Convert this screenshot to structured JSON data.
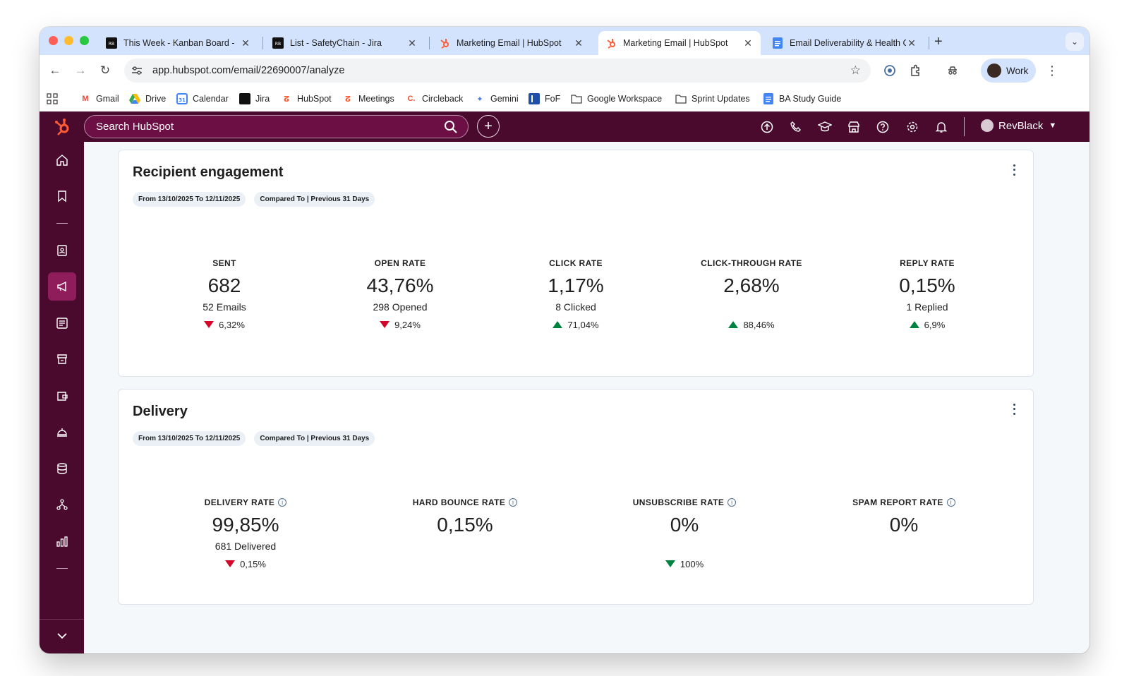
{
  "browser": {
    "tabs": [
      {
        "title": "This Week - Kanban Board - ",
        "active": false
      },
      {
        "title": "List - SafetyChain - Jira",
        "active": false
      },
      {
        "title": "Marketing Email | HubSpot",
        "active": false
      },
      {
        "title": "Marketing Email | HubSpot",
        "active": true
      },
      {
        "title": "Email Deliverability & Health C",
        "active": false
      }
    ],
    "new_tab": "+",
    "url": "app.hubspot.com/email/22690007/analyze",
    "profile_label": "Work",
    "bookmarks": [
      "Gmail",
      "Drive",
      "Calendar",
      "Jira",
      "HubSpot",
      "Meetings",
      "Circleback",
      "Gemini",
      "FoF",
      "Google Workspace",
      "Sprint Updates",
      "BA Study Guide"
    ]
  },
  "hubspot": {
    "search_placeholder": "Search HubSpot",
    "user_name": "RevBlack"
  },
  "engagement": {
    "title": "Recipient engagement",
    "date_range": "From 13/10/2025 To 12/11/2025",
    "compare": "Compared To | Previous 31 Days",
    "metrics": [
      {
        "label": "SENT",
        "value": "682",
        "sub": "52 Emails",
        "delta": "6,32%",
        "direction": "down"
      },
      {
        "label": "OPEN RATE",
        "value": "43,76%",
        "sub": "298 Opened",
        "delta": "9,24%",
        "direction": "down"
      },
      {
        "label": "CLICK RATE",
        "value": "1,17%",
        "sub": "8 Clicked",
        "delta": "71,04%",
        "direction": "up"
      },
      {
        "label": "CLICK-THROUGH RATE",
        "value": "2,68%",
        "sub": "",
        "delta": "88,46%",
        "direction": "up"
      },
      {
        "label": "REPLY RATE",
        "value": "0,15%",
        "sub": "1 Replied",
        "delta": "6,9%",
        "direction": "up"
      }
    ]
  },
  "delivery": {
    "title": "Delivery",
    "date_range": "From 13/10/2025 To 12/11/2025",
    "compare": "Compared To | Previous 31 Days",
    "metrics": [
      {
        "label": "DELIVERY RATE",
        "value": "99,85%",
        "sub": "681 Delivered",
        "delta": "0,15%",
        "direction": "down-red"
      },
      {
        "label": "HARD BOUNCE RATE",
        "value": "0,15%",
        "sub": "",
        "delta": "",
        "direction": ""
      },
      {
        "label": "UNSUBSCRIBE RATE",
        "value": "0%",
        "sub": "",
        "delta": "100%",
        "direction": "down-green"
      },
      {
        "label": "SPAM REPORT RATE",
        "value": "0%",
        "sub": "",
        "delta": "",
        "direction": ""
      }
    ]
  },
  "colors": {
    "hubspot_bar": "#4a0a2e",
    "accent_orange": "#ff5c35",
    "negative": "#d3072a",
    "positive": "#00823f"
  }
}
